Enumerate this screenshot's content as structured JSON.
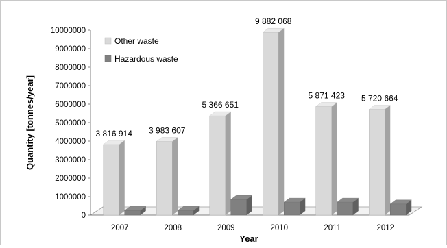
{
  "chart_data": {
    "type": "bar",
    "title": "",
    "xlabel": "Year",
    "ylabel": "Quantity [tonnes/year]",
    "categories": [
      "2007",
      "2008",
      "2009",
      "2010",
      "2011",
      "2012"
    ],
    "ylim": [
      0,
      10000000
    ],
    "yticks": [
      0,
      1000000,
      2000000,
      3000000,
      4000000,
      5000000,
      6000000,
      7000000,
      8000000,
      9000000,
      10000000
    ],
    "ytick_labels": [
      "0",
      "1000000",
      "2000000",
      "3000000",
      "4000000",
      "5000000",
      "6000000",
      "7000000",
      "8000000",
      "9000000",
      "10000000"
    ],
    "grid": false,
    "style": "3d-column",
    "legend_position": "top-left",
    "series": [
      {
        "name": "Other waste",
        "color": "#d9d9d9",
        "values": [
          3816914,
          3983607,
          5366651,
          9882068,
          5871423,
          5720664
        ],
        "data_labels": [
          "3 816 914",
          "3 983 607",
          "5 366 651",
          "9 882 068",
          "5 871 423",
          "5 720 664"
        ]
      },
      {
        "name": "Hazardous waste",
        "color": "#808080",
        "values": [
          250000,
          250000,
          850000,
          700000,
          700000,
          600000
        ],
        "data_labels": []
      }
    ]
  }
}
